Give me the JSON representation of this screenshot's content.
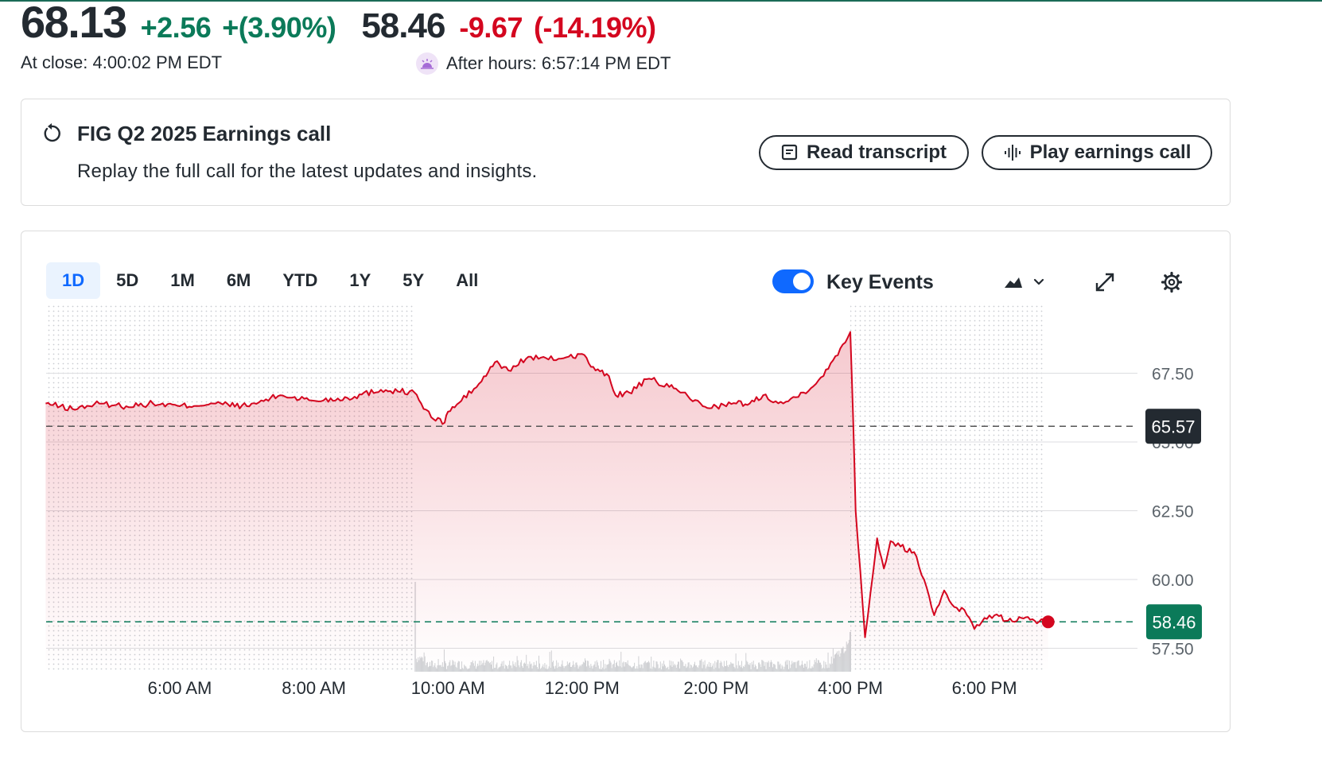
{
  "quote": {
    "price": "68.13",
    "change": "+2.56",
    "change_pct": "+(3.90%)",
    "close_label": "At close: 4:00:02 PM EDT",
    "ah_price": "58.46",
    "ah_change": "-9.67",
    "ah_change_pct": "(-14.19%)",
    "ah_label": "After hours: 6:57:14 PM EDT"
  },
  "earnings": {
    "title": "FIG Q2 2025 Earnings call",
    "subtitle": "Replay the full call for the latest updates and insights.",
    "read_label": "Read transcript",
    "play_label": "Play earnings call"
  },
  "chart_controls": {
    "ranges": [
      "1D",
      "5D",
      "1M",
      "6M",
      "YTD",
      "1Y",
      "5Y",
      "All"
    ],
    "active_range": "1D",
    "key_events_label": "Key Events",
    "key_events_on": true
  },
  "colors": {
    "line": "#d4061f",
    "positive": "#0b7a59",
    "negative": "#d4061f",
    "prev_close_box": "#232a31",
    "current_box": "#0b7a59",
    "active_tab": "#0f69ff"
  },
  "chart_data": {
    "type": "area",
    "x_axis": "time",
    "xticks": [
      "6:00 AM",
      "8:00 AM",
      "10:00 AM",
      "12:00 PM",
      "2:00 PM",
      "4:00 PM",
      "6:00 PM"
    ],
    "xtick_hours": [
      6,
      8,
      10,
      12,
      14,
      16,
      18
    ],
    "x_range_hours": [
      4,
      19
    ],
    "ylim": [
      57.0,
      69.4
    ],
    "yticks": [
      57.5,
      60.0,
      62.5,
      65.0,
      67.5
    ],
    "ytick_labels": [
      "57.50",
      "60.00",
      "62.50",
      "65.00",
      "67.50"
    ],
    "previous_close": 65.57,
    "previous_close_label": "65.57",
    "current_value": 58.46,
    "current_label": "58.46",
    "regular_session_hours": [
      9.5,
      16
    ],
    "series": [
      {
        "points": [
          [
            4.0,
            66.4
          ],
          [
            4.4,
            66.2
          ],
          [
            4.8,
            66.4
          ],
          [
            5.2,
            66.3
          ],
          [
            5.6,
            66.4
          ],
          [
            6.0,
            66.3
          ],
          [
            6.5,
            66.4
          ],
          [
            7.0,
            66.3
          ],
          [
            7.5,
            66.7
          ],
          [
            8.0,
            66.5
          ],
          [
            8.5,
            66.6
          ],
          [
            9.0,
            66.9
          ],
          [
            9.5,
            66.8
          ],
          [
            9.6,
            66.4
          ],
          [
            9.75,
            65.9
          ],
          [
            9.95,
            65.7
          ],
          [
            10.0,
            66.1
          ],
          [
            10.2,
            66.5
          ],
          [
            10.5,
            67.2
          ],
          [
            10.7,
            67.9
          ],
          [
            10.9,
            67.6
          ],
          [
            11.2,
            68.1
          ],
          [
            11.5,
            68.0
          ],
          [
            11.8,
            68.1
          ],
          [
            12.0,
            68.2
          ],
          [
            12.2,
            67.6
          ],
          [
            12.4,
            67.4
          ],
          [
            12.5,
            66.7
          ],
          [
            12.7,
            66.8
          ],
          [
            13.0,
            67.3
          ],
          [
            13.3,
            67.0
          ],
          [
            13.5,
            66.8
          ],
          [
            13.8,
            66.3
          ],
          [
            14.0,
            66.3
          ],
          [
            14.3,
            66.4
          ],
          [
            14.5,
            66.4
          ],
          [
            14.7,
            66.7
          ],
          [
            15.0,
            66.4
          ],
          [
            15.3,
            66.8
          ],
          [
            15.6,
            67.4
          ],
          [
            15.85,
            68.4
          ],
          [
            16.0,
            69.0
          ],
          [
            16.04,
            66.0
          ],
          [
            16.08,
            62.5
          ],
          [
            16.15,
            60.3
          ],
          [
            16.22,
            57.9
          ],
          [
            16.3,
            59.5
          ],
          [
            16.4,
            61.5
          ],
          [
            16.5,
            60.4
          ],
          [
            16.6,
            61.4
          ],
          [
            16.75,
            61.2
          ],
          [
            16.95,
            61.0
          ],
          [
            17.1,
            60.0
          ],
          [
            17.25,
            58.7
          ],
          [
            17.4,
            59.6
          ],
          [
            17.55,
            59.0
          ],
          [
            17.7,
            58.9
          ],
          [
            17.85,
            58.2
          ],
          [
            18.0,
            58.6
          ],
          [
            18.15,
            58.7
          ],
          [
            18.35,
            58.5
          ],
          [
            18.55,
            58.6
          ],
          [
            18.75,
            58.5
          ],
          [
            18.95,
            58.46
          ]
        ]
      }
    ],
    "volume": {
      "session_hours": [
        9.5,
        16
      ],
      "spike_hours": [
        9.5,
        16
      ]
    }
  }
}
